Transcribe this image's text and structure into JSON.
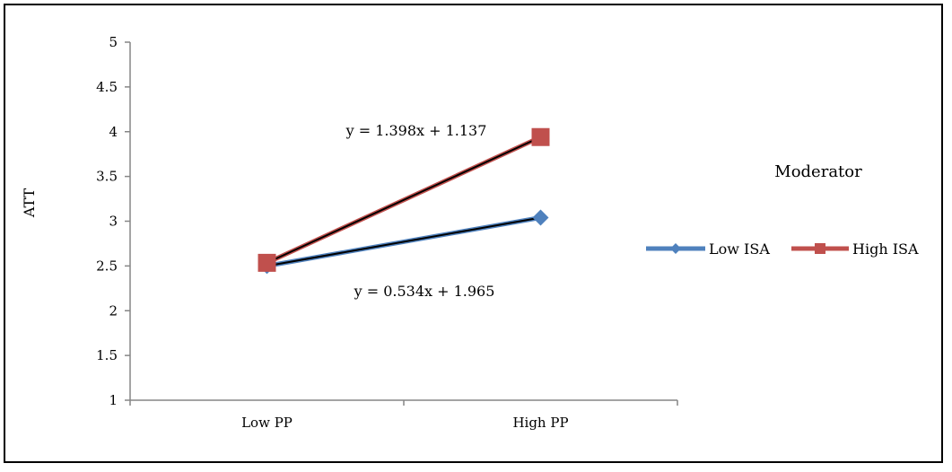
{
  "chart_data": {
    "type": "line",
    "categories": [
      "Low PP",
      "High PP"
    ],
    "ylabel": "ATT",
    "xlabel": "",
    "ylim": [
      1,
      5
    ],
    "yticks": [
      "1",
      "1.5",
      "2",
      "2.5",
      "3",
      "3.5",
      "4",
      "4.5",
      "5"
    ],
    "grid": false,
    "legend": {
      "title": "Moderator",
      "placement": "right"
    },
    "series": [
      {
        "name": "Low ISA",
        "values": [
          2.5,
          3.04
        ],
        "color": "#4F81BD",
        "marker": "diamond",
        "trendline_color": "#000000"
      },
      {
        "name": "High ISA",
        "values": [
          2.535,
          3.94
        ],
        "color": "#C0504D",
        "marker": "square",
        "trendline_color": "#000000"
      }
    ],
    "annotations": [
      "y = 1.398x + 1.137",
      "y = 0.534x + 1.965"
    ]
  }
}
